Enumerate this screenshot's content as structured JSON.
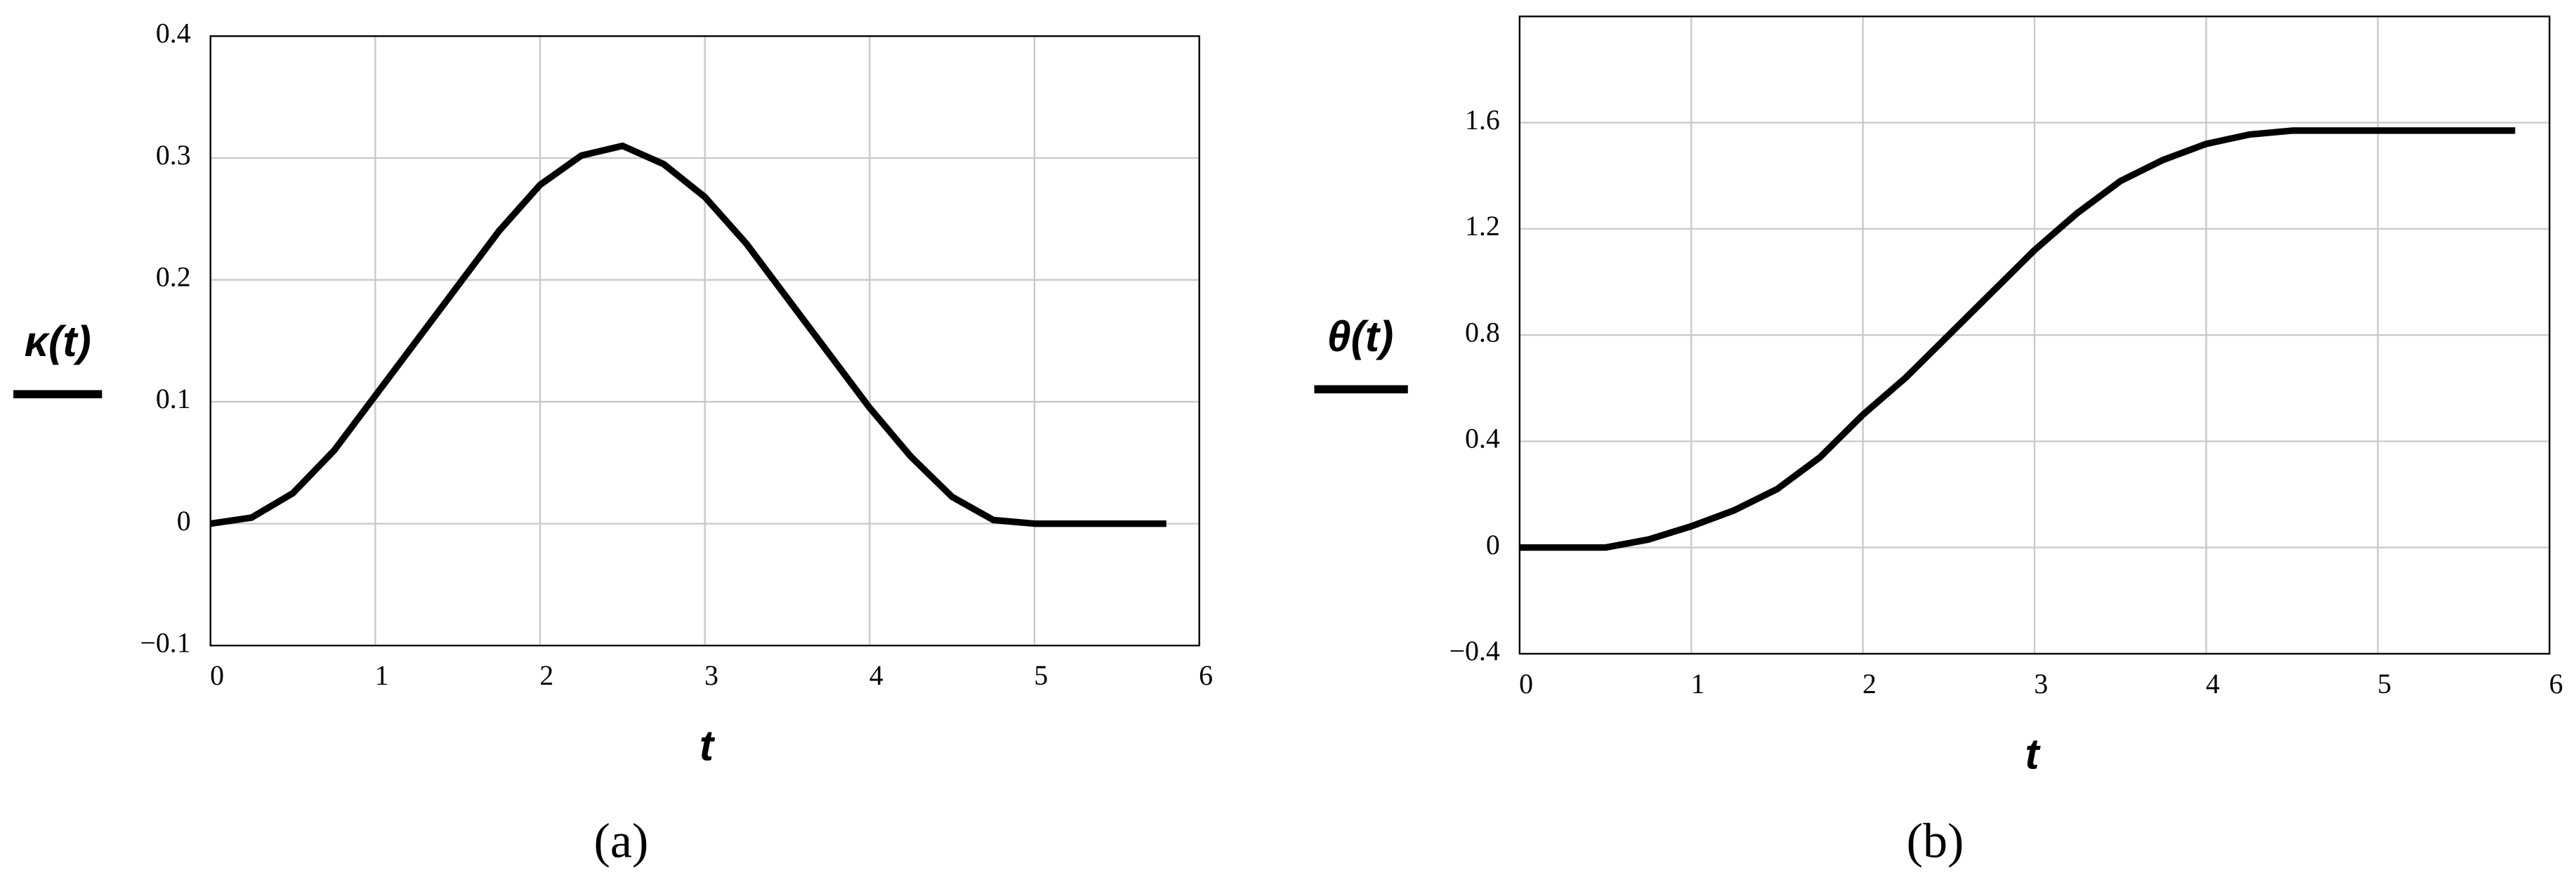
{
  "chart_data": [
    {
      "type": "line",
      "caption": "(a)",
      "ylabel": "κ(t)",
      "xlabel": "t",
      "x": [
        0,
        0.25,
        0.5,
        0.75,
        1,
        1.25,
        1.5,
        1.75,
        2,
        2.25,
        2.5,
        2.75,
        3,
        3.25,
        3.5,
        3.75,
        4,
        4.25,
        4.5,
        4.75,
        5,
        5.8
      ],
      "series": [
        {
          "color": "#000000",
          "values": [
            0,
            0.005,
            0.025,
            0.06,
            0.105,
            0.15,
            0.195,
            0.24,
            0.278,
            0.302,
            0.31,
            0.295,
            0.268,
            0.23,
            0.185,
            0.14,
            0.095,
            0.055,
            0.022,
            0.003,
            0,
            0
          ]
        }
      ],
      "xlim": [
        0,
        6
      ],
      "ylim": [
        -0.1,
        0.4
      ],
      "xticks": [
        0,
        1,
        2,
        3,
        4,
        5,
        6
      ],
      "yticks": [
        {
          "value": -0.1,
          "label": "−0.1"
        },
        0,
        0.1,
        0.2,
        0.3,
        0.4
      ],
      "grid": true
    },
    {
      "type": "line",
      "caption": "(b)",
      "ylabel": "θ(t)",
      "xlabel": "t",
      "x": [
        0,
        0.5,
        0.75,
        1,
        1.25,
        1.5,
        1.75,
        2,
        2.25,
        2.5,
        2.75,
        3,
        3.25,
        3.5,
        3.75,
        4,
        4.25,
        4.5,
        5,
        5.8
      ],
      "series": [
        {
          "color": "#000000",
          "values": [
            0,
            0,
            0.03,
            0.08,
            0.14,
            0.22,
            0.34,
            0.5,
            0.64,
            0.8,
            0.96,
            1.12,
            1.26,
            1.38,
            1.46,
            1.52,
            1.555,
            1.57,
            1.57,
            1.57
          ]
        }
      ],
      "xlim": [
        0,
        6
      ],
      "ylim": [
        -0.4,
        2.0
      ],
      "xticks": [
        0,
        1,
        2,
        3,
        4,
        5,
        6
      ],
      "yticks": [
        {
          "value": -0.4,
          "label": "−0.4"
        },
        0,
        0.4,
        0.8,
        1.2,
        1.6
      ],
      "grid": true
    }
  ]
}
